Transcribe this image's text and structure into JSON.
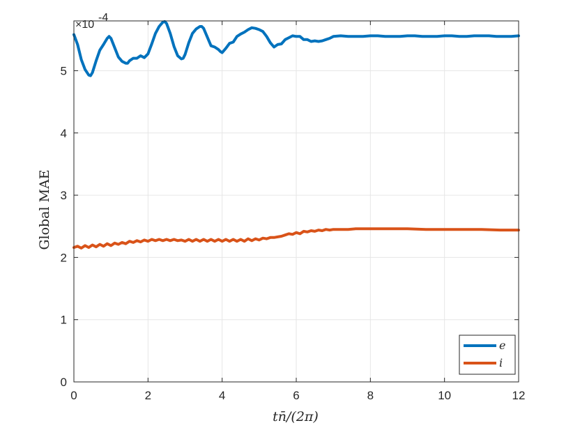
{
  "chart_data": {
    "type": "line",
    "title": "",
    "xlabel": "tn̄/(2π)",
    "ylabel": "Global MAE",
    "y_multiplier": "×10",
    "y_exponent": "-4",
    "xlim": [
      0,
      12
    ],
    "ylim": [
      0,
      5.8
    ],
    "xticks": [
      0,
      2,
      4,
      6,
      8,
      10,
      12
    ],
    "xtick_labels": [
      "0",
      "2",
      "4",
      "6",
      "8",
      "10",
      "12"
    ],
    "yticks": [
      0,
      1,
      2,
      3,
      4,
      5
    ],
    "ytick_labels": [
      "0",
      "1",
      "2",
      "3",
      "4",
      "5"
    ],
    "grid": true,
    "legend_position": "bottom-right",
    "series": [
      {
        "name": "e",
        "color": "#0072BD",
        "x": [
          0,
          0.1,
          0.2,
          0.3,
          0.4,
          0.45,
          0.5,
          0.6,
          0.7,
          0.8,
          0.9,
          0.95,
          1.0,
          1.1,
          1.2,
          1.3,
          1.4,
          1.45,
          1.5,
          1.6,
          1.7,
          1.8,
          1.9,
          2.0,
          2.1,
          2.2,
          2.3,
          2.4,
          2.45,
          2.5,
          2.6,
          2.7,
          2.8,
          2.9,
          2.95,
          3.0,
          3.1,
          3.2,
          3.3,
          3.4,
          3.45,
          3.5,
          3.6,
          3.7,
          3.8,
          3.9,
          3.95,
          4.0,
          4.1,
          4.2,
          4.3,
          4.4,
          4.5,
          4.6,
          4.7,
          4.8,
          4.9,
          5.0,
          5.1,
          5.2,
          5.3,
          5.4,
          5.5,
          5.6,
          5.7,
          5.8,
          5.9,
          6.0,
          6.1,
          6.2,
          6.3,
          6.4,
          6.5,
          6.6,
          6.7,
          6.8,
          6.9,
          7.0,
          7.2,
          7.4,
          7.6,
          7.8,
          8.0,
          8.2,
          8.4,
          8.6,
          8.8,
          9.0,
          9.2,
          9.4,
          9.6,
          9.8,
          10.0,
          10.2,
          10.4,
          10.6,
          10.8,
          11.0,
          11.2,
          11.4,
          11.6,
          11.8,
          12.0
        ],
        "y": [
          5.58,
          5.42,
          5.18,
          5.02,
          4.93,
          4.92,
          4.97,
          5.16,
          5.33,
          5.42,
          5.52,
          5.55,
          5.52,
          5.37,
          5.22,
          5.15,
          5.12,
          5.12,
          5.16,
          5.2,
          5.2,
          5.24,
          5.21,
          5.27,
          5.43,
          5.6,
          5.71,
          5.78,
          5.79,
          5.76,
          5.6,
          5.39,
          5.24,
          5.19,
          5.2,
          5.26,
          5.45,
          5.6,
          5.67,
          5.71,
          5.71,
          5.68,
          5.54,
          5.4,
          5.38,
          5.34,
          5.31,
          5.29,
          5.36,
          5.44,
          5.46,
          5.55,
          5.59,
          5.62,
          5.66,
          5.69,
          5.68,
          5.66,
          5.63,
          5.55,
          5.45,
          5.38,
          5.42,
          5.43,
          5.5,
          5.53,
          5.56,
          5.55,
          5.55,
          5.5,
          5.5,
          5.47,
          5.48,
          5.47,
          5.48,
          5.5,
          5.52,
          5.55,
          5.56,
          5.55,
          5.55,
          5.55,
          5.56,
          5.56,
          5.55,
          5.55,
          5.55,
          5.56,
          5.56,
          5.55,
          5.55,
          5.55,
          5.56,
          5.56,
          5.55,
          5.55,
          5.56,
          5.56,
          5.56,
          5.55,
          5.55,
          5.55,
          5.56
        ]
      },
      {
        "name": "i",
        "color": "#D95319",
        "x": [
          0,
          0.1,
          0.2,
          0.3,
          0.4,
          0.5,
          0.6,
          0.7,
          0.8,
          0.9,
          1.0,
          1.1,
          1.2,
          1.3,
          1.4,
          1.5,
          1.6,
          1.7,
          1.8,
          1.9,
          2.0,
          2.1,
          2.2,
          2.3,
          2.4,
          2.5,
          2.6,
          2.7,
          2.8,
          2.9,
          3.0,
          3.1,
          3.2,
          3.3,
          3.4,
          3.5,
          3.6,
          3.7,
          3.8,
          3.9,
          4.0,
          4.1,
          4.2,
          4.3,
          4.4,
          4.5,
          4.6,
          4.7,
          4.8,
          4.9,
          5.0,
          5.1,
          5.2,
          5.3,
          5.4,
          5.5,
          5.6,
          5.7,
          5.8,
          5.9,
          6.0,
          6.1,
          6.2,
          6.3,
          6.4,
          6.5,
          6.6,
          6.7,
          6.8,
          6.9,
          7.0,
          7.2,
          7.4,
          7.6,
          7.8,
          8.0,
          8.5,
          9.0,
          9.5,
          10.0,
          10.5,
          11.0,
          11.5,
          12.0
        ],
        "y": [
          2.16,
          2.18,
          2.15,
          2.19,
          2.16,
          2.2,
          2.17,
          2.21,
          2.18,
          2.22,
          2.19,
          2.23,
          2.21,
          2.24,
          2.22,
          2.26,
          2.24,
          2.27,
          2.25,
          2.28,
          2.26,
          2.29,
          2.27,
          2.29,
          2.27,
          2.29,
          2.27,
          2.29,
          2.27,
          2.28,
          2.26,
          2.29,
          2.26,
          2.29,
          2.26,
          2.29,
          2.26,
          2.29,
          2.26,
          2.29,
          2.26,
          2.29,
          2.26,
          2.29,
          2.26,
          2.29,
          2.26,
          2.3,
          2.27,
          2.3,
          2.28,
          2.31,
          2.3,
          2.32,
          2.32,
          2.33,
          2.34,
          2.36,
          2.38,
          2.37,
          2.4,
          2.38,
          2.42,
          2.41,
          2.43,
          2.42,
          2.44,
          2.43,
          2.45,
          2.44,
          2.45,
          2.45,
          2.45,
          2.46,
          2.46,
          2.46,
          2.46,
          2.46,
          2.45,
          2.45,
          2.45,
          2.45,
          2.44,
          2.44
        ]
      }
    ]
  },
  "legend": {
    "e_label": "e",
    "i_label": "i"
  }
}
